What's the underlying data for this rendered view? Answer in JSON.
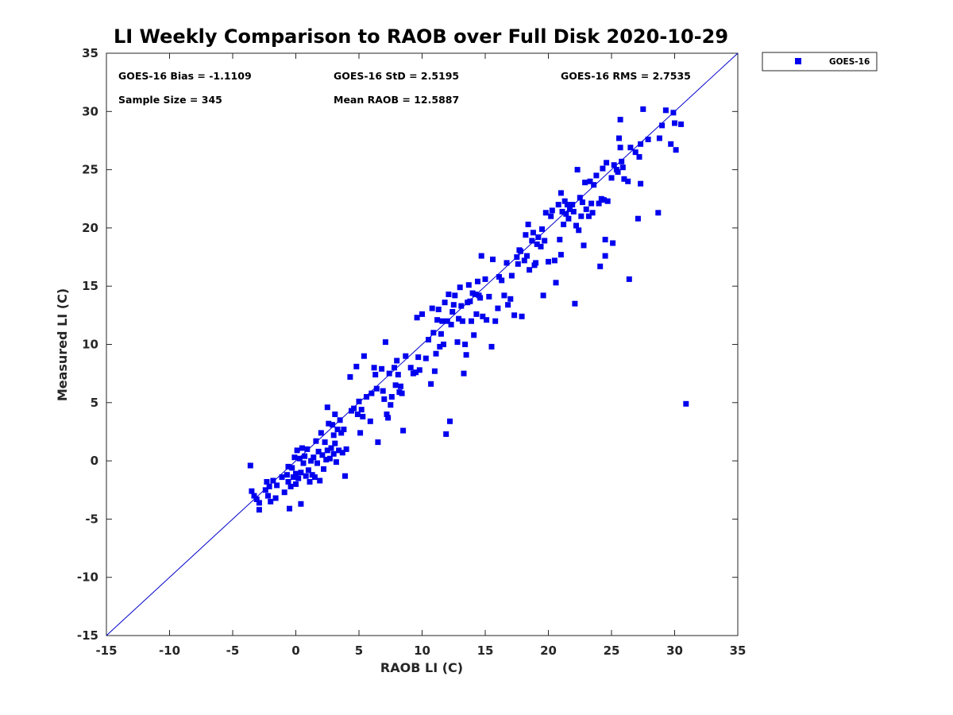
{
  "chart_data": {
    "type": "scatter",
    "title": "LI Weekly Comparison to RAOB over Full Disk 2020-10-29",
    "xlabel": "RAOB LI (C)",
    "ylabel": "Measured LI (C)",
    "xlim": [
      -15,
      35
    ],
    "ylim": [
      -15,
      35
    ],
    "xticks": [
      -15,
      -10,
      -5,
      0,
      5,
      10,
      15,
      20,
      25,
      30,
      35
    ],
    "yticks": [
      -15,
      -10,
      -5,
      0,
      5,
      10,
      15,
      20,
      25,
      30,
      35
    ],
    "xtick_labels": [
      "-15",
      "-10",
      "-5",
      "0",
      "5",
      "10",
      "15",
      "20",
      "25",
      "30",
      "35"
    ],
    "ytick_labels": [
      "-15",
      "-10",
      "-5",
      "0",
      "5",
      "10",
      "15",
      "20",
      "25",
      "30",
      "35"
    ],
    "grid": false,
    "legend_position": "outside-top-right",
    "reference_line": {
      "from": [
        -15,
        -15
      ],
      "to": [
        35,
        35
      ],
      "color": "#0000cc"
    },
    "stats": [
      "GOES-16 Bias = -1.1109",
      "GOES-16 StD = 2.5195",
      "GOES-16 RMS = 2.7535",
      "Sample Size = 345",
      "Mean RAOB = 12.5887"
    ],
    "series": [
      {
        "name": "GOES-16",
        "color": "#0000ee",
        "marker": "square",
        "points": [
          [
            -3.6,
            -0.4
          ],
          [
            -3.5,
            -2.6
          ],
          [
            -3.3,
            -3.0
          ],
          [
            -3.1,
            -3.3
          ],
          [
            -2.9,
            -3.6
          ],
          [
            -2.9,
            -4.2
          ],
          [
            -2.4,
            -2.5
          ],
          [
            -2.3,
            -1.8
          ],
          [
            -2.2,
            -3.0
          ],
          [
            -2.1,
            -2.2
          ],
          [
            -2.0,
            -3.5
          ],
          [
            -1.8,
            -1.7
          ],
          [
            -1.6,
            -3.2
          ],
          [
            -1.5,
            -2.1
          ],
          [
            -1.1,
            -1.4
          ],
          [
            -0.9,
            -2.7
          ],
          [
            -0.7,
            -1.2
          ],
          [
            -0.6,
            -0.5
          ],
          [
            -0.6,
            -1.8
          ],
          [
            -0.5,
            -4.1
          ],
          [
            -0.4,
            -2.2
          ],
          [
            -0.3,
            -0.6
          ],
          [
            -0.2,
            -1.4
          ],
          [
            -0.1,
            0.3
          ],
          [
            0.0,
            -2.0
          ],
          [
            0.0,
            -1.1
          ],
          [
            0.1,
            0.9
          ],
          [
            0.2,
            -1.5
          ],
          [
            0.3,
            0.2
          ],
          [
            0.4,
            -3.7
          ],
          [
            0.4,
            -1.0
          ],
          [
            0.5,
            1.1
          ],
          [
            0.6,
            -0.2
          ],
          [
            0.7,
            0.4
          ],
          [
            0.8,
            -1.3
          ],
          [
            0.9,
            1.0
          ],
          [
            1.0,
            -0.8
          ],
          [
            1.1,
            -1.8
          ],
          [
            1.2,
            0.0
          ],
          [
            1.3,
            -1.2
          ],
          [
            1.4,
            0.3
          ],
          [
            1.5,
            -1.4
          ],
          [
            1.6,
            1.7
          ],
          [
            1.7,
            -0.2
          ],
          [
            1.8,
            0.8
          ],
          [
            1.9,
            -1.7
          ],
          [
            2.0,
            2.4
          ],
          [
            2.1,
            0.5
          ],
          [
            2.2,
            -0.7
          ],
          [
            2.3,
            1.6
          ],
          [
            2.4,
            0.1
          ],
          [
            2.5,
            0.9
          ],
          [
            2.5,
            4.6
          ],
          [
            2.6,
            3.2
          ],
          [
            2.7,
            0.2
          ],
          [
            2.8,
            1.1
          ],
          [
            2.9,
            3.1
          ],
          [
            3.0,
            0.6
          ],
          [
            3.0,
            2.2
          ],
          [
            3.1,
            1.5
          ],
          [
            3.1,
            4.0
          ],
          [
            3.2,
            -0.1
          ],
          [
            3.3,
            2.7
          ],
          [
            3.4,
            0.9
          ],
          [
            3.5,
            3.5
          ],
          [
            3.6,
            2.4
          ],
          [
            3.7,
            0.7
          ],
          [
            3.8,
            2.7
          ],
          [
            3.9,
            -1.3
          ],
          [
            4.0,
            1.0
          ],
          [
            4.3,
            7.2
          ],
          [
            4.4,
            4.3
          ],
          [
            4.6,
            4.5
          ],
          [
            4.8,
            8.1
          ],
          [
            4.9,
            4.0
          ],
          [
            5.0,
            5.1
          ],
          [
            5.1,
            2.4
          ],
          [
            5.2,
            4.4
          ],
          [
            5.3,
            3.8
          ],
          [
            5.4,
            9.0
          ],
          [
            5.6,
            5.5
          ],
          [
            5.9,
            3.4
          ],
          [
            6.0,
            5.8
          ],
          [
            6.2,
            8.0
          ],
          [
            6.3,
            7.4
          ],
          [
            6.4,
            6.2
          ],
          [
            6.5,
            1.6
          ],
          [
            6.8,
            7.9
          ],
          [
            6.9,
            6.0
          ],
          [
            7.0,
            5.3
          ],
          [
            7.1,
            10.2
          ],
          [
            7.2,
            4.0
          ],
          [
            7.3,
            3.7
          ],
          [
            7.4,
            7.5
          ],
          [
            7.5,
            4.8
          ],
          [
            7.6,
            5.5
          ],
          [
            7.8,
            8.0
          ],
          [
            7.9,
            6.5
          ],
          [
            8.0,
            8.6
          ],
          [
            8.1,
            7.4
          ],
          [
            8.2,
            5.9
          ],
          [
            8.3,
            6.4
          ],
          [
            8.4,
            5.8
          ],
          [
            8.5,
            2.6
          ],
          [
            8.7,
            9.0
          ],
          [
            9.1,
            8.0
          ],
          [
            9.3,
            7.5
          ],
          [
            9.5,
            7.6
          ],
          [
            9.6,
            12.3
          ],
          [
            9.7,
            8.9
          ],
          [
            9.8,
            7.8
          ],
          [
            10.0,
            12.6
          ],
          [
            10.3,
            8.8
          ],
          [
            10.5,
            10.4
          ],
          [
            10.7,
            6.6
          ],
          [
            10.8,
            13.1
          ],
          [
            10.9,
            11.0
          ],
          [
            11.0,
            7.7
          ],
          [
            11.1,
            9.2
          ],
          [
            11.2,
            12.1
          ],
          [
            11.3,
            13.0
          ],
          [
            11.4,
            9.8
          ],
          [
            11.5,
            10.9
          ],
          [
            11.6,
            12.0
          ],
          [
            11.7,
            10.0
          ],
          [
            11.8,
            13.6
          ],
          [
            11.9,
            2.3
          ],
          [
            12.0,
            12.0
          ],
          [
            12.1,
            14.3
          ],
          [
            12.2,
            3.4
          ],
          [
            12.3,
            11.7
          ],
          [
            12.4,
            12.8
          ],
          [
            12.5,
            13.4
          ],
          [
            12.6,
            14.2
          ],
          [
            12.8,
            10.2
          ],
          [
            12.9,
            12.2
          ],
          [
            13.0,
            14.9
          ],
          [
            13.1,
            13.3
          ],
          [
            13.2,
            12.0
          ],
          [
            13.3,
            7.5
          ],
          [
            13.4,
            10.0
          ],
          [
            13.5,
            9.1
          ],
          [
            13.6,
            13.6
          ],
          [
            13.7,
            15.1
          ],
          [
            13.8,
            13.7
          ],
          [
            13.9,
            12.0
          ],
          [
            14.0,
            14.4
          ],
          [
            14.1,
            10.8
          ],
          [
            14.2,
            14.3
          ],
          [
            14.3,
            12.6
          ],
          [
            14.4,
            15.4
          ],
          [
            14.5,
            14.2
          ],
          [
            14.6,
            14.0
          ],
          [
            14.7,
            17.6
          ],
          [
            14.8,
            12.4
          ],
          [
            15.0,
            15.6
          ],
          [
            15.1,
            12.1
          ],
          [
            15.3,
            14.1
          ],
          [
            15.5,
            9.8
          ],
          [
            15.6,
            17.3
          ],
          [
            15.8,
            12.0
          ],
          [
            16.0,
            13.1
          ],
          [
            16.1,
            15.8
          ],
          [
            16.3,
            15.5
          ],
          [
            16.5,
            14.2
          ],
          [
            16.7,
            17.0
          ],
          [
            16.8,
            13.4
          ],
          [
            17.0,
            13.9
          ],
          [
            17.1,
            15.9
          ],
          [
            17.3,
            12.5
          ],
          [
            17.5,
            17.5
          ],
          [
            17.6,
            16.9
          ],
          [
            17.7,
            18.1
          ],
          [
            17.8,
            18.0
          ],
          [
            17.9,
            12.4
          ],
          [
            18.1,
            17.2
          ],
          [
            18.2,
            19.4
          ],
          [
            18.3,
            17.6
          ],
          [
            18.4,
            20.3
          ],
          [
            18.5,
            16.4
          ],
          [
            18.7,
            18.9
          ],
          [
            18.8,
            19.6
          ],
          [
            18.9,
            16.8
          ],
          [
            19.0,
            17.0
          ],
          [
            19.1,
            18.6
          ],
          [
            19.2,
            19.2
          ],
          [
            19.4,
            18.4
          ],
          [
            19.5,
            19.9
          ],
          [
            19.6,
            14.2
          ],
          [
            19.7,
            18.9
          ],
          [
            19.8,
            21.3
          ],
          [
            20.0,
            17.1
          ],
          [
            20.2,
            21.0
          ],
          [
            20.3,
            21.5
          ],
          [
            20.5,
            17.2
          ],
          [
            20.6,
            15.3
          ],
          [
            20.8,
            22.0
          ],
          [
            20.9,
            19.0
          ],
          [
            21.0,
            23.0
          ],
          [
            21.0,
            17.7
          ],
          [
            21.1,
            21.4
          ],
          [
            21.2,
            20.3
          ],
          [
            21.3,
            22.3
          ],
          [
            21.4,
            21.2
          ],
          [
            21.5,
            22.0
          ],
          [
            21.6,
            20.8
          ],
          [
            21.7,
            21.6
          ],
          [
            21.9,
            22.0
          ],
          [
            22.0,
            21.4
          ],
          [
            22.1,
            13.5
          ],
          [
            22.2,
            20.2
          ],
          [
            22.3,
            25.0
          ],
          [
            22.4,
            19.8
          ],
          [
            22.5,
            22.6
          ],
          [
            22.6,
            21.0
          ],
          [
            22.7,
            22.2
          ],
          [
            22.8,
            18.5
          ],
          [
            22.9,
            23.9
          ],
          [
            23.0,
            21.6
          ],
          [
            23.2,
            21.0
          ],
          [
            23.3,
            24.0
          ],
          [
            23.4,
            22.1
          ],
          [
            23.5,
            21.3
          ],
          [
            23.6,
            23.7
          ],
          [
            23.8,
            24.5
          ],
          [
            24.0,
            22.1
          ],
          [
            24.1,
            16.7
          ],
          [
            24.2,
            22.5
          ],
          [
            24.3,
            25.1
          ],
          [
            24.4,
            22.4
          ],
          [
            24.5,
            17.6
          ],
          [
            24.5,
            19.0
          ],
          [
            24.6,
            25.6
          ],
          [
            24.7,
            22.3
          ],
          [
            25.0,
            24.3
          ],
          [
            25.1,
            18.7
          ],
          [
            25.2,
            25.4
          ],
          [
            25.4,
            25.0
          ],
          [
            25.5,
            24.8
          ],
          [
            25.6,
            27.7
          ],
          [
            25.7,
            29.3
          ],
          [
            25.7,
            26.9
          ],
          [
            25.8,
            25.7
          ],
          [
            25.9,
            25.2
          ],
          [
            26.0,
            24.2
          ],
          [
            26.3,
            24.0
          ],
          [
            26.4,
            15.6
          ],
          [
            26.5,
            26.9
          ],
          [
            26.9,
            26.5
          ],
          [
            27.1,
            20.8
          ],
          [
            27.2,
            26.1
          ],
          [
            27.3,
            23.8
          ],
          [
            27.3,
            27.2
          ],
          [
            27.5,
            30.2
          ],
          [
            27.9,
            27.6
          ],
          [
            28.7,
            21.3
          ],
          [
            28.8,
            27.7
          ],
          [
            29.0,
            28.8
          ],
          [
            29.3,
            30.1
          ],
          [
            29.7,
            27.2
          ],
          [
            29.9,
            29.9
          ],
          [
            30.0,
            29.0
          ],
          [
            30.1,
            26.7
          ],
          [
            30.5,
            28.9
          ],
          [
            30.9,
            4.9
          ]
        ]
      }
    ]
  }
}
